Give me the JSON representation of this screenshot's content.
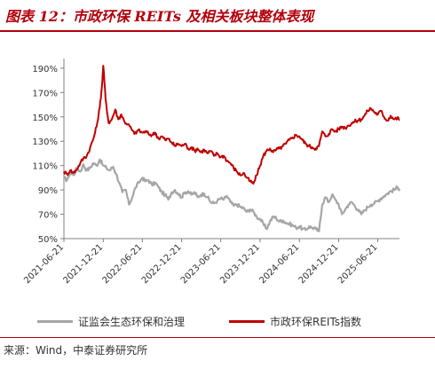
{
  "title": "图表 12：市政环保 REITs 及相关板块整体表现",
  "source": "来源：Wind，中泰证券研究所",
  "chart_data": {
    "type": "line",
    "y_tick_labels": [
      "50%",
      "70%",
      "90%",
      "110%",
      "130%",
      "150%",
      "170%",
      "190%"
    ],
    "y_ticks": [
      50,
      70,
      90,
      110,
      130,
      150,
      170,
      190
    ],
    "ylim": [
      50,
      195
    ],
    "x_tick_labels": [
      "2021-06-21",
      "2021-12-21",
      "2022-06-21",
      "2022-12-21",
      "2023-06-21",
      "2023-12-21",
      "2024-06-21",
      "2024-12-21",
      "2025-06-21"
    ],
    "x_ticks": [
      "2021-06-21",
      "2021-12-21",
      "2022-06-21",
      "2022-12-21",
      "2023-06-21",
      "2023-12-21",
      "2024-06-21",
      "2024-12-21",
      "2025-06-21"
    ],
    "xlim": [
      "2021-06-21",
      "2025-09-30"
    ],
    "grid": false,
    "legend_position": "bottom",
    "series": [
      {
        "name": "证监会生态环保和治理",
        "color": "#a6a6a6",
        "points": [
          [
            "2021-06-21",
            100
          ],
          [
            "2021-07-05",
            98
          ],
          [
            "2021-07-20",
            104
          ],
          [
            "2021-08-05",
            102
          ],
          [
            "2021-08-20",
            108
          ],
          [
            "2021-09-05",
            105
          ],
          [
            "2021-09-20",
            111
          ],
          [
            "2021-10-05",
            106
          ],
          [
            "2021-10-20",
            108
          ],
          [
            "2021-11-05",
            112
          ],
          [
            "2021-11-20",
            110
          ],
          [
            "2021-12-05",
            115
          ],
          [
            "2021-12-21",
            110
          ],
          [
            "2022-01-05",
            108
          ],
          [
            "2022-01-20",
            106
          ],
          [
            "2022-02-05",
            109
          ],
          [
            "2022-02-20",
            103
          ],
          [
            "2022-03-05",
            96
          ],
          [
            "2022-03-20",
            88
          ],
          [
            "2022-04-05",
            90
          ],
          [
            "2022-04-20",
            78
          ],
          [
            "2022-05-05",
            84
          ],
          [
            "2022-05-20",
            92
          ],
          [
            "2022-06-05",
            96
          ],
          [
            "2022-06-21",
            100
          ],
          [
            "2022-07-05",
            97
          ],
          [
            "2022-07-20",
            98
          ],
          [
            "2022-08-05",
            94
          ],
          [
            "2022-08-20",
            96
          ],
          [
            "2022-09-05",
            92
          ],
          [
            "2022-09-20",
            88
          ],
          [
            "2022-10-05",
            86
          ],
          [
            "2022-10-20",
            82
          ],
          [
            "2022-11-05",
            88
          ],
          [
            "2022-11-20",
            90
          ],
          [
            "2022-12-05",
            87
          ],
          [
            "2022-12-21",
            84
          ],
          [
            "2023-01-05",
            88
          ],
          [
            "2023-01-20",
            89
          ],
          [
            "2023-02-05",
            86
          ],
          [
            "2023-02-20",
            88
          ],
          [
            "2023-03-05",
            84
          ],
          [
            "2023-03-20",
            86
          ],
          [
            "2023-04-05",
            87
          ],
          [
            "2023-04-20",
            84
          ],
          [
            "2023-05-05",
            80
          ],
          [
            "2023-05-20",
            79
          ],
          [
            "2023-06-05",
            81
          ],
          [
            "2023-06-21",
            83
          ],
          [
            "2023-07-05",
            82
          ],
          [
            "2023-07-20",
            85
          ],
          [
            "2023-08-05",
            80
          ],
          [
            "2023-08-20",
            77
          ],
          [
            "2023-09-05",
            78
          ],
          [
            "2023-09-20",
            76
          ],
          [
            "2023-10-05",
            75
          ],
          [
            "2023-10-20",
            72
          ],
          [
            "2023-11-05",
            74
          ],
          [
            "2023-11-20",
            72
          ],
          [
            "2023-12-05",
            68
          ],
          [
            "2023-12-21",
            66
          ],
          [
            "2024-01-05",
            62
          ],
          [
            "2024-01-20",
            58
          ],
          [
            "2024-02-05",
            64
          ],
          [
            "2024-02-20",
            68
          ],
          [
            "2024-03-05",
            67
          ],
          [
            "2024-03-20",
            64
          ],
          [
            "2024-04-05",
            65
          ],
          [
            "2024-04-20",
            63
          ],
          [
            "2024-05-05",
            62
          ],
          [
            "2024-05-20",
            61
          ],
          [
            "2024-06-05",
            59
          ],
          [
            "2024-06-21",
            60
          ],
          [
            "2024-07-05",
            58
          ],
          [
            "2024-07-20",
            57
          ],
          [
            "2024-08-05",
            60
          ],
          [
            "2024-08-20",
            59
          ],
          [
            "2024-09-05",
            58
          ],
          [
            "2024-09-20",
            56
          ],
          [
            "2024-10-05",
            78
          ],
          [
            "2024-10-20",
            84
          ],
          [
            "2024-11-05",
            80
          ],
          [
            "2024-11-20",
            86
          ],
          [
            "2024-12-05",
            82
          ],
          [
            "2024-12-21",
            78
          ],
          [
            "2025-01-05",
            70
          ],
          [
            "2025-01-20",
            74
          ],
          [
            "2025-02-05",
            78
          ],
          [
            "2025-02-20",
            80
          ],
          [
            "2025-03-05",
            77
          ],
          [
            "2025-03-20",
            74
          ],
          [
            "2025-04-05",
            70
          ],
          [
            "2025-04-20",
            73
          ],
          [
            "2025-05-05",
            76
          ],
          [
            "2025-05-20",
            78
          ],
          [
            "2025-06-05",
            79
          ],
          [
            "2025-06-21",
            81
          ],
          [
            "2025-07-05",
            83
          ],
          [
            "2025-07-20",
            85
          ],
          [
            "2025-08-05",
            87
          ],
          [
            "2025-08-20",
            89
          ],
          [
            "2025-09-05",
            90
          ],
          [
            "2025-09-20",
            92
          ],
          [
            "2025-09-30",
            91
          ]
        ]
      },
      {
        "name": "市政环保REITs指数",
        "color": "#c00000",
        "points": [
          [
            "2021-06-21",
            105
          ],
          [
            "2021-07-05",
            103
          ],
          [
            "2021-07-20",
            106
          ],
          [
            "2021-08-05",
            104
          ],
          [
            "2021-08-20",
            107
          ],
          [
            "2021-09-05",
            112
          ],
          [
            "2021-09-20",
            116
          ],
          [
            "2021-10-05",
            118
          ],
          [
            "2021-10-20",
            124
          ],
          [
            "2021-11-05",
            132
          ],
          [
            "2021-11-20",
            142
          ],
          [
            "2021-12-05",
            158
          ],
          [
            "2021-12-15",
            175
          ],
          [
            "2021-12-21",
            192
          ],
          [
            "2022-01-01",
            165
          ],
          [
            "2022-01-15",
            145
          ],
          [
            "2022-01-30",
            148
          ],
          [
            "2022-02-15",
            156
          ],
          [
            "2022-03-01",
            148
          ],
          [
            "2022-03-15",
            152
          ],
          [
            "2022-03-30",
            146
          ],
          [
            "2022-04-15",
            144
          ],
          [
            "2022-05-01",
            140
          ],
          [
            "2022-05-15",
            136
          ],
          [
            "2022-06-01",
            139
          ],
          [
            "2022-06-21",
            137
          ],
          [
            "2022-07-05",
            138
          ],
          [
            "2022-07-20",
            136
          ],
          [
            "2022-08-05",
            135
          ],
          [
            "2022-08-20",
            137
          ],
          [
            "2022-09-05",
            132
          ],
          [
            "2022-09-20",
            134
          ],
          [
            "2022-10-05",
            131
          ],
          [
            "2022-10-20",
            132
          ],
          [
            "2022-11-05",
            129
          ],
          [
            "2022-11-20",
            126
          ],
          [
            "2022-12-05",
            128
          ],
          [
            "2022-12-21",
            126
          ],
          [
            "2023-01-05",
            128
          ],
          [
            "2023-01-20",
            124
          ],
          [
            "2023-02-05",
            125
          ],
          [
            "2023-02-20",
            122
          ],
          [
            "2023-03-05",
            124
          ],
          [
            "2023-03-20",
            121
          ],
          [
            "2023-04-05",
            123
          ],
          [
            "2023-04-20",
            120
          ],
          [
            "2023-05-05",
            122
          ],
          [
            "2023-05-20",
            118
          ],
          [
            "2023-06-05",
            120
          ],
          [
            "2023-06-21",
            117
          ],
          [
            "2023-07-05",
            118
          ],
          [
            "2023-07-20",
            114
          ],
          [
            "2023-08-05",
            112
          ],
          [
            "2023-08-20",
            108
          ],
          [
            "2023-09-05",
            105
          ],
          [
            "2023-09-20",
            102
          ],
          [
            "2023-10-05",
            104
          ],
          [
            "2023-10-20",
            100
          ],
          [
            "2023-11-05",
            97
          ],
          [
            "2023-11-20",
            95
          ],
          [
            "2023-12-05",
            102
          ],
          [
            "2023-12-21",
            110
          ],
          [
            "2024-01-05",
            118
          ],
          [
            "2024-01-20",
            122
          ],
          [
            "2024-02-05",
            124
          ],
          [
            "2024-02-20",
            121
          ],
          [
            "2024-03-05",
            123
          ],
          [
            "2024-03-20",
            124
          ],
          [
            "2024-04-05",
            126
          ],
          [
            "2024-04-20",
            128
          ],
          [
            "2024-05-05",
            131
          ],
          [
            "2024-05-20",
            133
          ],
          [
            "2024-06-05",
            135
          ],
          [
            "2024-06-21",
            134
          ],
          [
            "2024-07-05",
            131
          ],
          [
            "2024-07-20",
            128
          ],
          [
            "2024-08-05",
            126
          ],
          [
            "2024-08-20",
            125
          ],
          [
            "2024-09-05",
            124
          ],
          [
            "2024-09-20",
            126
          ],
          [
            "2024-10-05",
            138
          ],
          [
            "2024-10-20",
            134
          ],
          [
            "2024-11-05",
            136
          ],
          [
            "2024-11-20",
            140
          ],
          [
            "2024-12-05",
            138
          ],
          [
            "2024-12-21",
            140
          ],
          [
            "2025-01-05",
            142
          ],
          [
            "2025-01-20",
            141
          ],
          [
            "2025-02-05",
            143
          ],
          [
            "2025-02-20",
            145
          ],
          [
            "2025-03-05",
            146
          ],
          [
            "2025-03-20",
            147
          ],
          [
            "2025-04-05",
            148
          ],
          [
            "2025-04-20",
            151
          ],
          [
            "2025-05-05",
            155
          ],
          [
            "2025-05-20",
            157
          ],
          [
            "2025-06-05",
            154
          ],
          [
            "2025-06-21",
            152
          ],
          [
            "2025-07-05",
            155
          ],
          [
            "2025-07-20",
            150
          ],
          [
            "2025-08-05",
            147
          ],
          [
            "2025-08-20",
            151
          ],
          [
            "2025-09-05",
            148
          ],
          [
            "2025-09-20",
            149
          ],
          [
            "2025-09-30",
            148
          ]
        ]
      }
    ]
  }
}
